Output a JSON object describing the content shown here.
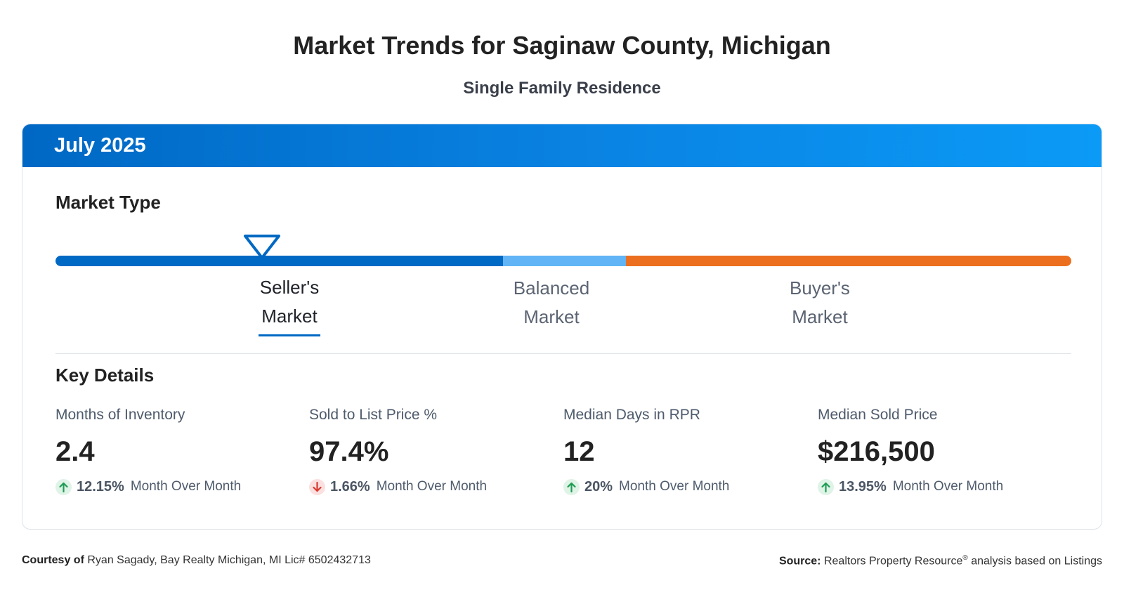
{
  "header": {
    "title": "Market Trends for Saginaw County, Michigan",
    "subtitle": "Single Family Residence"
  },
  "card": {
    "period": "July 2025",
    "market_type_title": "Market Type",
    "market_type_value": "Seller's Market",
    "gauge": {
      "colors": {
        "seller": "#0069c3",
        "balanced": "#61b4f5",
        "buyer": "#ec6f1f"
      },
      "labels": {
        "seller_line1": "Seller's",
        "seller_line2": "Market",
        "balanced_line1": "Balanced",
        "balanced_line2": "Market",
        "buyer_line1": "Buyer's",
        "buyer_line2": "Market"
      }
    },
    "key_details_title": "Key Details",
    "metrics": [
      {
        "label": "Months of Inventory",
        "value": "2.4",
        "change": "12.15%",
        "direction": "up",
        "suffix": "Month Over Month"
      },
      {
        "label": "Sold to List Price %",
        "value": "97.4%",
        "change": "1.66%",
        "direction": "down",
        "suffix": "Month Over Month"
      },
      {
        "label": "Median Days in RPR",
        "value": "12",
        "change": "20%",
        "direction": "up",
        "suffix": "Month Over Month"
      },
      {
        "label": "Median Sold Price",
        "value": "$216,500",
        "change": "13.95%",
        "direction": "up",
        "suffix": "Month Over Month"
      }
    ]
  },
  "footer": {
    "courtesy_label": "Courtesy of",
    "courtesy_text": "Ryan Sagady, Bay Realty Michigan, MI Lic# 6502432713",
    "source_label": "Source:",
    "source_text_1": "Realtors Property Resource",
    "source_reg": "®",
    "source_text_2": " analysis based on Listings"
  },
  "colors": {
    "accent": "#0a84e4",
    "up": "#1f9d55",
    "down": "#d93b30"
  }
}
